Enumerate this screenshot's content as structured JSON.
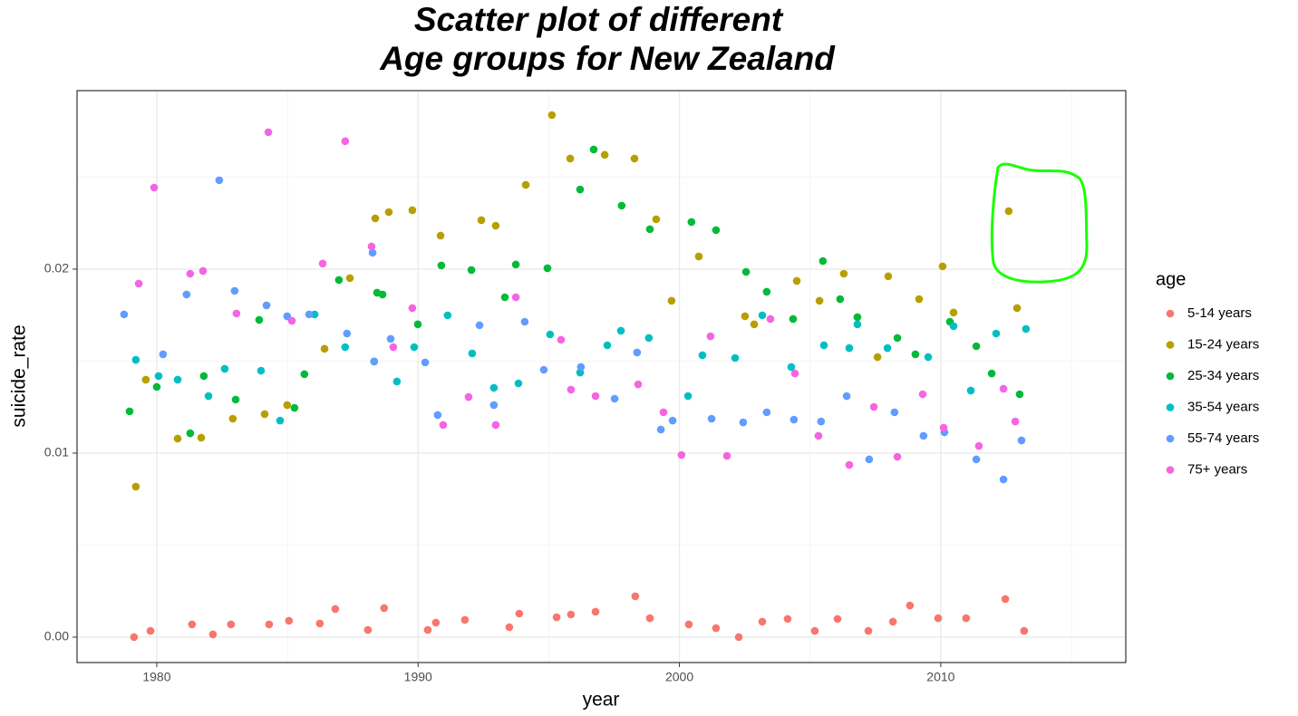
{
  "chart_data": {
    "type": "scatter",
    "title": [
      "Scatter plot of different",
      "Age groups for New Zealand"
    ],
    "x_label": "year",
    "y_label": "suicide_rate",
    "legend_title": "age",
    "legend_position": "right",
    "grid": true,
    "xlim": [
      1976.95,
      2017.08
    ],
    "ylim": [
      -0.00138,
      0.0297
    ],
    "xticks": [
      1980,
      1990,
      2000,
      2010
    ],
    "x_minor_ticks": [
      1985,
      1995,
      2005,
      2015
    ],
    "yticks": [
      {
        "value": 0,
        "label": "0.00"
      },
      {
        "value": 0.01,
        "label": "0.01"
      },
      {
        "value": 0.02,
        "label": "0.02"
      }
    ],
    "y_minor_ticks": [
      0.005,
      0.015,
      0.025
    ],
    "series": [
      {
        "name": "5-14 years",
        "color": "#F8766D",
        "x": [
          1979.13,
          1979.76,
          1981.35,
          1982.15,
          1982.84,
          1984.3,
          1985.06,
          1986.24,
          1986.83,
          1988.08,
          1988.7,
          1990.37,
          1990.68,
          1991.79,
          1993.49,
          1993.87,
          1995.3,
          1995.85,
          1996.79,
          1998.31,
          1998.87,
          2000.36,
          2001.4,
          2002.27,
          2003.17,
          2004.14,
          2005.18,
          2006.05,
          2007.23,
          2008.17,
          2008.82,
          2009.9,
          2010.97,
          2012.47,
          2013.19
        ],
        "values": [
          0,
          0.00034,
          0.00069,
          0.00015,
          0.00069,
          0.00069,
          0.00089,
          0.00074,
          0.00153,
          0.00039,
          0.00158,
          0.00039,
          0.00079,
          0.00094,
          0.00054,
          0.00128,
          0.00108,
          0.00123,
          0.00138,
          0.00222,
          0.00103,
          0.00069,
          0.00049,
          0,
          0.00084,
          0.00099,
          0.00034,
          0.00099,
          0.00034,
          0.00084,
          0.00172,
          0.00103,
          0.00103,
          0.00207,
          0.00034
        ]
      },
      {
        "name": "15-24 years",
        "color": "#B79F00",
        "x": [
          1979.2,
          1979.58,
          1980.8,
          1981.7,
          1982.91,
          1984.13,
          1984.99,
          1986.42,
          1987.39,
          1988.36,
          1988.88,
          1989.78,
          1990.86,
          1992.42,
          1992.97,
          1994.12,
          1995.12,
          1995.82,
          1997.14,
          1998.28,
          1999.11,
          1999.7,
          2000.74,
          2002.51,
          2002.86,
          2004.49,
          2005.36,
          2006.29,
          2007.58,
          2007.99,
          2009.17,
          2010.07,
          2010.49,
          2012.6,
          2012.92
        ],
        "values": [
          0.00818,
          0.01399,
          0.01079,
          0.01084,
          0.01187,
          0.01212,
          0.01261,
          0.01567,
          0.01951,
          0.02276,
          0.0231,
          0.0232,
          0.02182,
          0.02266,
          0.02236,
          0.02458,
          0.02837,
          0.02601,
          0.02621,
          0.02601,
          0.02271,
          0.01828,
          0.02069,
          0.01744,
          0.017,
          0.01936,
          0.01828,
          0.01975,
          0.01522,
          0.01961,
          0.01837,
          0.02015,
          0.01764,
          0.02315,
          0.01788
        ]
      },
      {
        "name": "25-34 years",
        "color": "#00BA38",
        "x": [
          1978.96,
          1980.0,
          1981.28,
          1981.8,
          1983.02,
          1983.92,
          1985.27,
          1985.65,
          1986.97,
          1988.43,
          1988.64,
          1989.99,
          1990.89,
          1992.04,
          1993.32,
          1993.74,
          1994.95,
          1996.2,
          1996.72,
          1997.79,
          1998.87,
          2000.46,
          2001.4,
          2002.55,
          2003.34,
          2004.35,
          2005.49,
          2006.15,
          2006.81,
          2008.34,
          2009.03,
          2010.35,
          2011.36,
          2011.95,
          2013.02
        ],
        "values": [
          0.01227,
          0.0136,
          0.01108,
          0.01419,
          0.01291,
          0.01724,
          0.01246,
          0.01429,
          0.01941,
          0.01872,
          0.01862,
          0.017,
          0.0202,
          0.01995,
          0.01847,
          0.02025,
          0.02005,
          0.02433,
          0.0265,
          0.02345,
          0.02217,
          0.02256,
          0.02212,
          0.01985,
          0.01877,
          0.01729,
          0.02044,
          0.01837,
          0.01739,
          0.01626,
          0.01537,
          0.01714,
          0.01581,
          0.01433,
          0.0132
        ]
      },
      {
        "name": "35-54 years",
        "color": "#00BFC4",
        "x": [
          1979.2,
          1980.07,
          1980.8,
          1981.98,
          1982.6,
          1983.99,
          1984.72,
          1986.04,
          1987.21,
          1988.32,
          1989.19,
          1989.85,
          1991.13,
          1992.07,
          1992.9,
          1993.84,
          1995.05,
          1996.2,
          1997.24,
          1997.76,
          1998.83,
          2000.33,
          2000.88,
          2002.13,
          2003.17,
          2004.28,
          2005.53,
          2006.5,
          2006.81,
          2007.96,
          2009.52,
          2010.49,
          2011.15,
          2012.12,
          2013.26
        ],
        "values": [
          0.01507,
          0.01419,
          0.01399,
          0.0131,
          0.01458,
          0.01448,
          0.01177,
          0.01754,
          0.01576,
          0.01498,
          0.01389,
          0.01576,
          0.01749,
          0.01542,
          0.01355,
          0.01379,
          0.01645,
          0.01438,
          0.01586,
          0.01665,
          0.01626,
          0.0131,
          0.01532,
          0.01517,
          0.01749,
          0.01468,
          0.01586,
          0.01571,
          0.017,
          0.01571,
          0.01522,
          0.0169,
          0.0134,
          0.0165,
          0.01675
        ]
      },
      {
        "name": "55-74 years",
        "color": "#619CFF",
        "x": [
          1978.75,
          1980.24,
          1981.14,
          1982.39,
          1982.98,
          1984.2,
          1984.99,
          1985.83,
          1987.28,
          1988.26,
          1988.32,
          1988.95,
          1990.27,
          1990.75,
          1992.35,
          1992.9,
          1994.08,
          1994.81,
          1996.23,
          1997.52,
          1998.38,
          1999.29,
          1999.74,
          2001.23,
          2002.44,
          2003.34,
          2004.38,
          2005.42,
          2006.4,
          2007.26,
          2008.23,
          2009.34,
          2010.14,
          2011.36,
          2012.4,
          2013.09
        ],
        "values": [
          0.01754,
          0.01537,
          0.01862,
          0.02483,
          0.01882,
          0.01803,
          0.01744,
          0.01754,
          0.0165,
          0.02089,
          0.01498,
          0.01621,
          0.01493,
          0.01207,
          0.01695,
          0.01261,
          0.01714,
          0.01453,
          0.01468,
          0.01296,
          0.01547,
          0.01128,
          0.01177,
          0.01187,
          0.01167,
          0.01222,
          0.01182,
          0.01172,
          0.0131,
          0.00966,
          0.01222,
          0.01094,
          0.01113,
          0.00966,
          0.00857,
          0.01069
        ]
      },
      {
        "name": "75+ years",
        "color": "#F564E3",
        "x": [
          1979.31,
          1979.9,
          1981.28,
          1981.77,
          1983.05,
          1984.27,
          1985.17,
          1986.35,
          1987.21,
          1988.22,
          1989.05,
          1989.78,
          1990.96,
          1991.93,
          1992.97,
          1993.74,
          1995.47,
          1995.85,
          1996.79,
          1998.42,
          1999.39,
          2000.08,
          2001.19,
          2001.82,
          2003.48,
          2004.42,
          2005.32,
          2006.5,
          2007.44,
          2008.34,
          2009.31,
          2010.11,
          2011.46,
          2012.4,
          2012.85
        ],
        "values": [
          0.01921,
          0.02443,
          0.01975,
          0.0199,
          0.01759,
          0.02744,
          0.01719,
          0.0203,
          0.02695,
          0.02123,
          0.01576,
          0.01788,
          0.01153,
          0.01305,
          0.01153,
          0.01847,
          0.01616,
          0.01345,
          0.0131,
          0.01374,
          0.01222,
          0.0099,
          0.01635,
          0.00985,
          0.01729,
          0.01433,
          0.01094,
          0.00936,
          0.01251,
          0.0098,
          0.0132,
          0.01138,
          0.01039,
          0.0135,
          0.01172
        ]
      }
    ]
  }
}
